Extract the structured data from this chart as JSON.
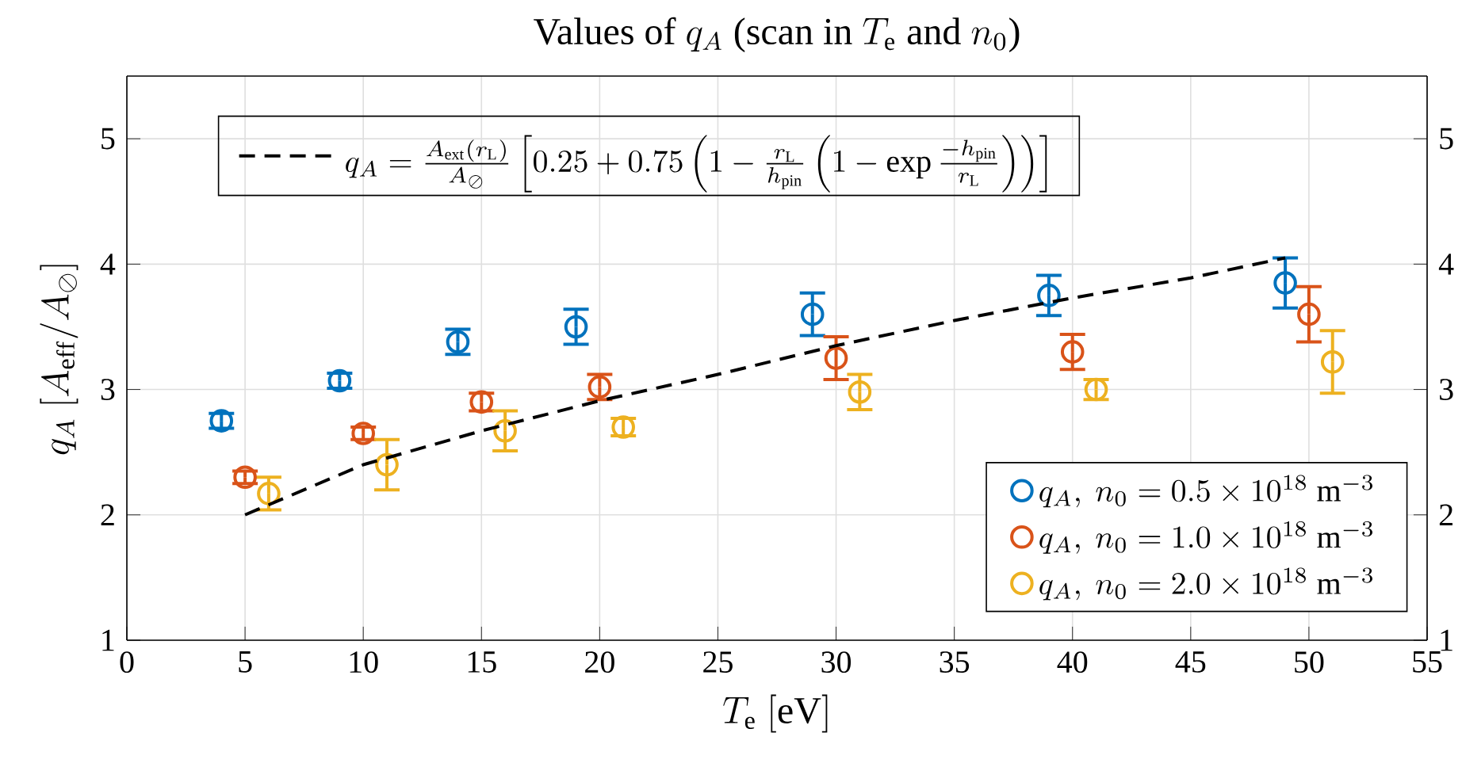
{
  "chart_data": {
    "type": "scatter",
    "title": "\\mbox{Values of } q_A \\mbox{ (scan in } T_\\mathrm{e} \\mbox{ and } n_0\\mbox{)}",
    "xlabel": "T_\\mathrm{e}\\ [\\mathrm{eV}]",
    "ylabel": "q_A\\ [A_\\mathrm{eff}/A_\\oslash]",
    "xlim": [
      0,
      55
    ],
    "xticks": [
      0,
      5,
      10,
      15,
      20,
      25,
      30,
      35,
      40,
      45,
      50,
      55
    ],
    "ylim": [
      1,
      5.5
    ],
    "yticks": [
      1,
      2,
      3,
      4,
      5
    ],
    "y2lim": [
      1,
      5.5
    ],
    "y2ticks": [
      1,
      2,
      3,
      4,
      5
    ],
    "grid": true,
    "legend": "bottom right",
    "marker": "circle",
    "series": [
      {
        "name": "q_A,\\ n_0 = 0.5\\times 10^{18}\\ \\mathrm{m}^{-3}",
        "color": "#0072bd",
        "x": [
          4,
          9,
          14,
          19,
          29,
          39,
          49
        ],
        "values": [
          2.75,
          3.07,
          3.38,
          3.5,
          3.6,
          3.75,
          3.85
        ],
        "errors": [
          0.06,
          0.06,
          0.1,
          0.14,
          0.17,
          0.16,
          0.2
        ]
      },
      {
        "name": "q_A,\\ n_0 = 1.0\\times 10^{18}\\ \\mathrm{m}^{-3}",
        "color": "#d95319",
        "x": [
          5,
          10,
          15,
          20,
          30,
          40,
          50
        ],
        "values": [
          2.3,
          2.65,
          2.9,
          3.02,
          3.25,
          3.3,
          3.6
        ],
        "errors": [
          0.05,
          0.05,
          0.07,
          0.1,
          0.17,
          0.14,
          0.22
        ]
      },
      {
        "name": "q_A,\\ n_0 = 2.0\\times 10^{18}\\ \\mathrm{m}^{-3}",
        "color": "#edb120",
        "x": [
          6,
          11,
          16,
          21,
          31,
          41,
          51
        ],
        "values": [
          2.17,
          2.4,
          2.67,
          2.7,
          2.98,
          3.0,
          3.22
        ],
        "errors": [
          0.13,
          0.2,
          0.16,
          0.07,
          0.14,
          0.08,
          0.25
        ]
      },
      {
        "name": "q_A = \\frac{A_\\mathrm{ext}(r_\\mathrm{L})}{A_\\oslash}\\left[0.25+0.75\\left(1-\\frac{r_\\mathrm{L}}{h_\\mathrm{pin}}\\left(1-\\exp\\frac{-h_\\mathrm{pin}}{r_\\mathrm{L}}\\right)\\right)\\right]",
        "type": "line",
        "line_style": "dashed",
        "marker": "none",
        "color": "#000000",
        "x": [
          5,
          10,
          15,
          20,
          25,
          30,
          35,
          40,
          45,
          49
        ],
        "values": [
          2.0,
          2.4,
          2.67,
          2.91,
          3.12,
          3.35,
          3.55,
          3.73,
          3.89,
          4.05
        ]
      }
    ]
  }
}
